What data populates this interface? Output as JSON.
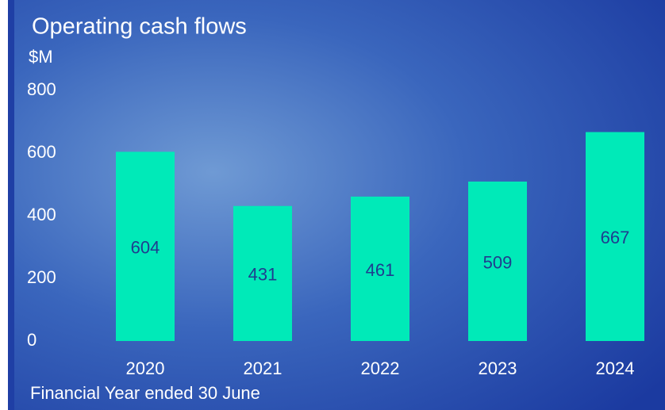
{
  "chart_data": {
    "type": "bar",
    "title": "Operating cash flows",
    "y_label": "$M",
    "x_label": "Financial Year ended 30 June",
    "categories": [
      "2020",
      "2021",
      "2022",
      "2023",
      "2024"
    ],
    "values": [
      604,
      431,
      461,
      509,
      667
    ],
    "color": "#00eab8",
    "label_color": "#1f3d8f",
    "ylim": [
      0,
      800
    ],
    "yticks": [
      0,
      200,
      400,
      600,
      800
    ],
    "grid": false
  }
}
